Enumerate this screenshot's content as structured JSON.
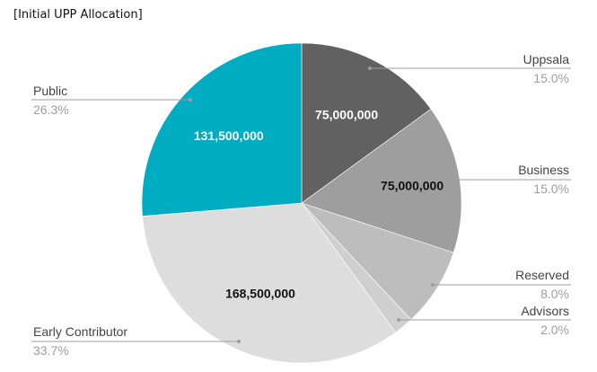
{
  "chart_data": {
    "type": "pie",
    "title": "[Initial UPP Allocation]",
    "slices": [
      {
        "label": "Uppsala",
        "value": 75000000,
        "value_label": "75,000,000",
        "percent": "15.0%",
        "color": "#616161",
        "text_color": "#ffffff"
      },
      {
        "label": "Business",
        "value": 75000000,
        "value_label": "75,000,000",
        "percent": "15.0%",
        "color": "#9e9e9e",
        "text_color": "#111111"
      },
      {
        "label": "Reserved",
        "value": 40000000,
        "value_label": "",
        "percent": "8.0%",
        "color": "#bdbdbd",
        "text_color": "#111111"
      },
      {
        "label": "Advisors",
        "value": 10000000,
        "value_label": "",
        "percent": "2.0%",
        "color": "#cfcfcf",
        "text_color": "#111111"
      },
      {
        "label": "Early Contributor",
        "value": 168500000,
        "value_label": "168,500,000",
        "percent": "33.7%",
        "color": "#dddddd",
        "text_color": "#111111"
      },
      {
        "label": "Public",
        "value": 131500000,
        "value_label": "131,500,000",
        "percent": "26.3%",
        "color": "#00acc1",
        "text_color": "#ffffff"
      }
    ],
    "leader_color": "#9e9e9e",
    "legend_placement": "outside labels with leader lines"
  }
}
